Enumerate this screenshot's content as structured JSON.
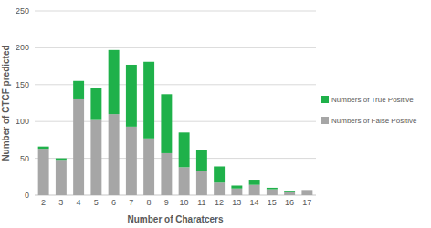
{
  "chart_data": {
    "type": "bar",
    "stacked": true,
    "grid": true,
    "legend": "right",
    "x_label": "Number of Charatcers",
    "y_label": "Number of CTCF predicted",
    "categories": [
      "2",
      "3",
      "4",
      "5",
      "6",
      "7",
      "8",
      "9",
      "10",
      "11",
      "12",
      "13",
      "14",
      "15",
      "16",
      "17"
    ],
    "series": [
      {
        "name": "Numbers of False Positive",
        "color": "#a6a6a6",
        "values": [
          63,
          48,
          130,
          102,
          110,
          93,
          77,
          57,
          38,
          33,
          17,
          9,
          14,
          8,
          4,
          7
        ]
      },
      {
        "name": "Numbers of True Positive",
        "color": "#1fb14a",
        "values": [
          3,
          2,
          25,
          43,
          87,
          84,
          104,
          80,
          47,
          28,
          22,
          4,
          7,
          2,
          2,
          0
        ]
      }
    ],
    "ylim": [
      0,
      250
    ],
    "yticks": [
      0,
      50,
      100,
      150,
      200,
      250
    ]
  }
}
